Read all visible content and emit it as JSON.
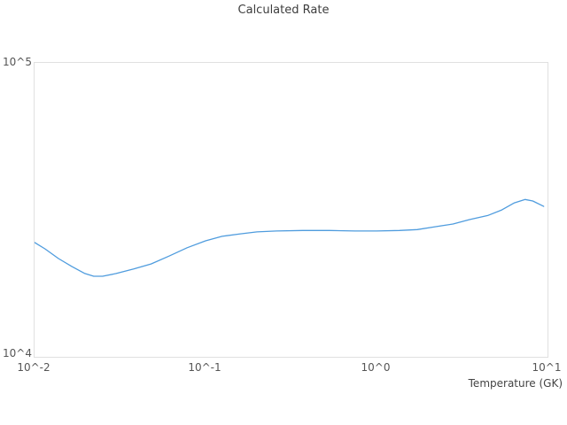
{
  "title": "Calculated Rate",
  "colors": {
    "line": "#4f9cde",
    "plot_border": "#e0e0e0",
    "title_text": "#3d3d3d",
    "tick_text": "#555555"
  },
  "chart_data": {
    "type": "line",
    "title": "Calculated Rate",
    "xlabel": "Temperature (GK)",
    "ylabel": "",
    "x_scale": "log",
    "y_scale": "log",
    "xlim": [
      0.01,
      10
    ],
    "ylim": [
      10000,
      100000
    ],
    "grid": false,
    "legend": "none",
    "x_tick_labels": [
      "10^-2",
      "10^-1",
      "10^0",
      "10^1"
    ],
    "y_tick_labels": [
      "10^4",
      "10^5"
    ],
    "series_name": "calculated-rate",
    "x": [
      0.01,
      0.0115,
      0.0138,
      0.0165,
      0.0197,
      0.0222,
      0.025,
      0.03,
      0.038,
      0.048,
      0.061,
      0.078,
      0.1,
      0.125,
      0.16,
      0.2,
      0.26,
      0.37,
      0.53,
      0.75,
      1.0,
      1.36,
      1.73,
      2.2,
      2.8,
      3.5,
      4.5,
      5.4,
      6.4,
      7.4,
      8.2,
      9.5
    ],
    "y": [
      24500,
      23300,
      21600,
      20300,
      19200,
      18800,
      18800,
      19200,
      19900,
      20700,
      22000,
      23500,
      24800,
      25700,
      26200,
      26600,
      26800,
      26900,
      26900,
      26800,
      26800,
      26900,
      27100,
      27700,
      28300,
      29300,
      30300,
      31600,
      33400,
      34300,
      33900,
      32500
    ]
  }
}
